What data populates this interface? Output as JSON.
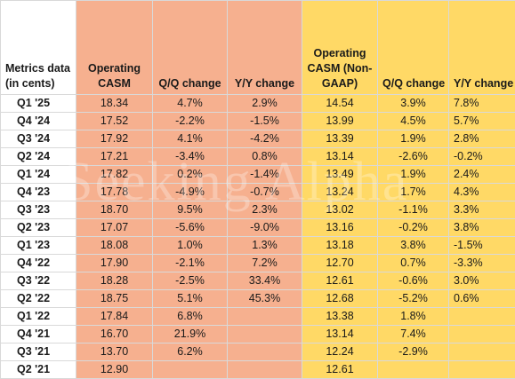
{
  "table": {
    "headers": [
      "Metrics data (in cents)",
      "Operating CASM",
      "Q/Q change",
      "Y/Y change",
      "Operating CASM (Non-GAAP)",
      "Q/Q change",
      "Y/Y change"
    ],
    "rows": [
      [
        "Q1 '25",
        "18.34",
        "4.7%",
        "2.9%",
        "14.54",
        "3.9%",
        "7.8%"
      ],
      [
        "Q4 '24",
        "17.52",
        "-2.2%",
        "-1.5%",
        "13.99",
        "4.5%",
        "5.7%"
      ],
      [
        "Q3 '24",
        "17.92",
        "4.1%",
        "-4.2%",
        "13.39",
        "1.9%",
        "2.8%"
      ],
      [
        "Q2 '24",
        "17.21",
        "-3.4%",
        "0.8%",
        "13.14",
        "-2.6%",
        "-0.2%"
      ],
      [
        "Q1 '24",
        "17.82",
        "0.2%",
        "-1.4%",
        "13.49",
        "1.9%",
        "2.4%"
      ],
      [
        "Q4 '23",
        "17.78",
        "-4.9%",
        "-0.7%",
        "13.24",
        "1.7%",
        "4.3%"
      ],
      [
        "Q3 '23",
        "18.70",
        "9.5%",
        "2.3%",
        "13.02",
        "-1.1%",
        "3.3%"
      ],
      [
        "Q2 '23",
        "17.07",
        "-5.6%",
        "-9.0%",
        "13.16",
        "-0.2%",
        "3.8%"
      ],
      [
        "Q1 '23",
        "18.08",
        "1.0%",
        "1.3%",
        "13.18",
        "3.8%",
        "-1.5%"
      ],
      [
        "Q4 '22",
        "17.90",
        "-2.1%",
        "7.2%",
        "12.70",
        "0.7%",
        "-3.3%"
      ],
      [
        "Q3 '22",
        "18.28",
        "-2.5%",
        "33.4%",
        "12.61",
        "-0.6%",
        "3.0%"
      ],
      [
        "Q2 '22",
        "18.75",
        "5.1%",
        "45.3%",
        "12.68",
        "-5.2%",
        "0.6%"
      ],
      [
        "Q1 '22",
        "17.84",
        "6.8%",
        "",
        "13.38",
        "1.8%",
        ""
      ],
      [
        "Q4 '21",
        "16.70",
        "21.9%",
        "",
        "13.14",
        "7.4%",
        ""
      ],
      [
        "Q3 '21",
        "13.70",
        "6.2%",
        "",
        "12.24",
        "-2.9%",
        ""
      ],
      [
        "Q2 '21",
        "12.90",
        "",
        "",
        "12.61",
        "",
        ""
      ]
    ]
  },
  "watermark": "Seeking Alpha"
}
